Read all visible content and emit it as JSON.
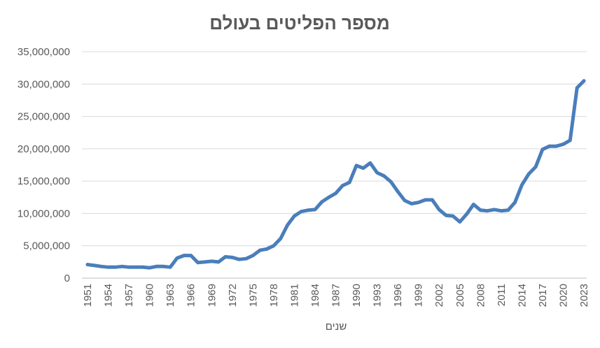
{
  "chart_data": {
    "type": "line",
    "title": "מספר הפליטים בעולם",
    "xlabel": "שנים",
    "ylabel": "",
    "ylim": [
      0,
      35000000
    ],
    "y_ticks": [
      "0",
      "5,000,000",
      "10,000,000",
      "15,000,000",
      "20,000,000",
      "25,000,000",
      "30,000,000",
      "35,000,000"
    ],
    "x_tick_labels": [
      "1951",
      "1954",
      "1957",
      "1960",
      "1963",
      "1966",
      "1969",
      "1972",
      "1975",
      "1978",
      "1981",
      "1984",
      "1987",
      "1990",
      "1993",
      "1996",
      "1999",
      "2002",
      "2005",
      "2008",
      "2011",
      "2014",
      "2017",
      "2020",
      "2023"
    ],
    "grid": "horizontal",
    "legend": "none",
    "colors": {
      "series": "#4a7ebb",
      "grid": "#d9d9d9",
      "text": "#595959"
    },
    "x": [
      1951,
      1952,
      1953,
      1954,
      1955,
      1956,
      1957,
      1958,
      1959,
      1960,
      1961,
      1962,
      1963,
      1964,
      1965,
      1966,
      1967,
      1968,
      1969,
      1970,
      1971,
      1972,
      1973,
      1974,
      1975,
      1976,
      1977,
      1978,
      1979,
      1980,
      1981,
      1982,
      1983,
      1984,
      1985,
      1986,
      1987,
      1988,
      1989,
      1990,
      1991,
      1992,
      1993,
      1994,
      1995,
      1996,
      1997,
      1998,
      1999,
      2000,
      2001,
      2002,
      2003,
      2004,
      2005,
      2006,
      2007,
      2008,
      2009,
      2010,
      2011,
      2012,
      2013,
      2014,
      2015,
      2016,
      2017,
      2018,
      2019,
      2020,
      2021,
      2022,
      2023
    ],
    "series": [
      {
        "values": [
          2100000,
          1950000,
          1800000,
          1700000,
          1700000,
          1800000,
          1700000,
          1700000,
          1700000,
          1600000,
          1800000,
          1800000,
          1700000,
          3100000,
          3500000,
          3500000,
          2400000,
          2500000,
          2600000,
          2500000,
          3300000,
          3200000,
          2900000,
          3000000,
          3500000,
          4300000,
          4500000,
          5000000,
          6100000,
          8200000,
          9600000,
          10300000,
          10500000,
          10600000,
          11800000,
          12500000,
          13100000,
          14300000,
          14800000,
          17400000,
          17000000,
          17800000,
          16300000,
          15800000,
          14900000,
          13400000,
          12000000,
          11500000,
          11700000,
          12100000,
          12100000,
          10600000,
          9700000,
          9600000,
          8700000,
          9900000,
          11400000,
          10500000,
          10400000,
          10600000,
          10400000,
          10500000,
          11700000,
          14400000,
          16100000,
          17200000,
          19900000,
          20400000,
          20400000,
          20700000,
          21300000,
          29400000,
          30500000
        ]
      }
    ]
  }
}
